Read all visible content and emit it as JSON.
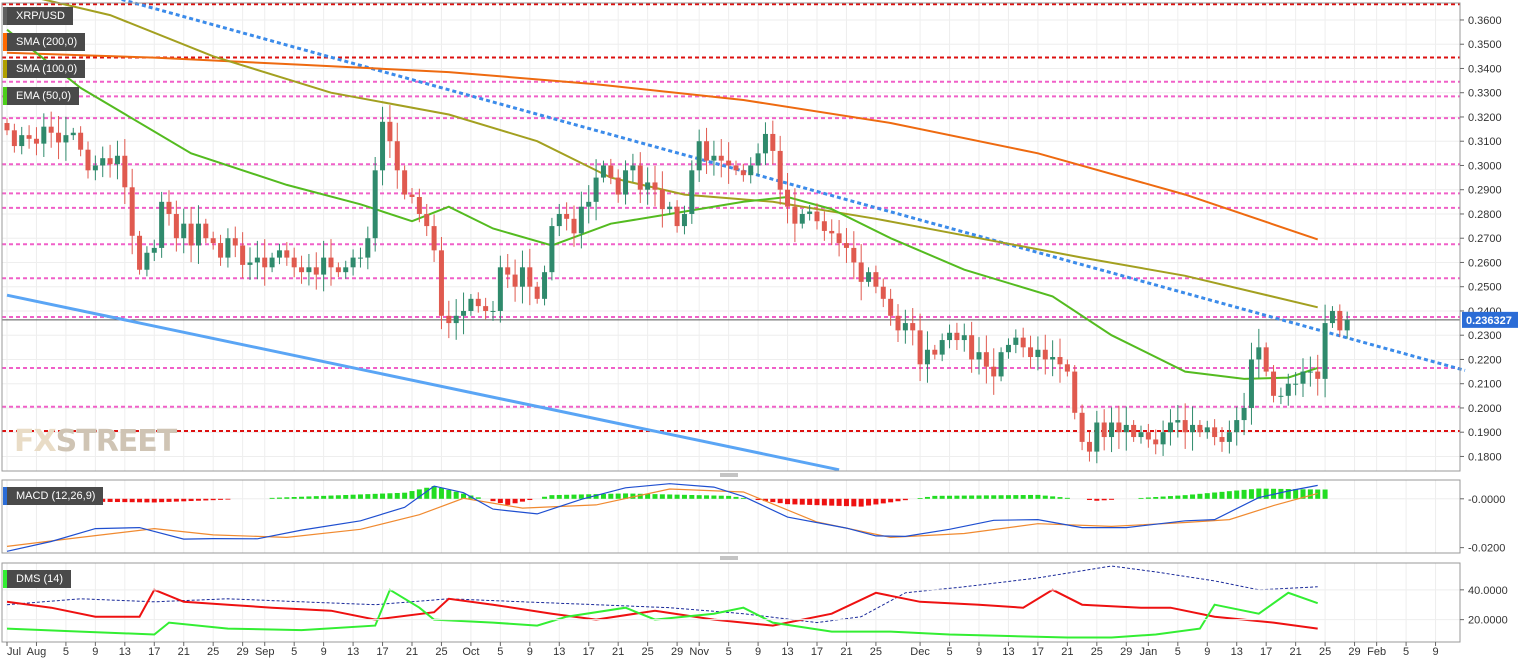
{
  "colors": {
    "up": "#2f8a6c",
    "down": "#e05a4f",
    "sma200": "#ee6a10",
    "sma100": "#a3a020",
    "ema50": "#54bb20",
    "trend_blue": "#3b8bea",
    "channel_blue": "#5aa5f5",
    "res_red": "#dd1010",
    "res_pink": "#f060c8",
    "macd_line": "#1f4fd0",
    "signal_line": "#f08a30",
    "hist_pos": "#22dd22",
    "hist_neg": "#ee1111",
    "dmi_plus": "#33ee33",
    "dmi_minus": "#ee1111",
    "adx": "#1a2a9a"
  },
  "overlay_tags": {
    "symbol": "XRP/USD",
    "sma200": "SMA (200,0)",
    "sma100": "SMA (100,0)",
    "ema50": "EMA (50,0)",
    "macd": "MACD (12,26,9)",
    "dms": "DMS (14)"
  },
  "watermark": {
    "prefix": "FX",
    "rest": "STREET"
  },
  "chart_data": [
    {
      "type": "candlestick",
      "title": "XRP/USD",
      "ylim": [
        0.174,
        0.367
      ],
      "last_price_label": "0.236327",
      "last_price": 0.236327,
      "y_ticks": [
        "0.3600",
        "0.3500",
        "0.3400",
        "0.3300",
        "0.3200",
        "0.3100",
        "0.3000",
        "0.2900",
        "0.2800",
        "0.2700",
        "0.2600",
        "0.2500",
        "0.2400",
        "0.2300",
        "0.2200",
        "0.2100",
        "0.2000",
        "0.1900",
        "0.1800"
      ],
      "x_ticks": [
        "Jul",
        "Aug",
        "5",
        "9",
        "13",
        "17",
        "21",
        "25",
        "29",
        "Sep",
        "5",
        "9",
        "13",
        "17",
        "21",
        "25",
        "Oct",
        "5",
        "9",
        "13",
        "17",
        "21",
        "25",
        "29",
        "Nov",
        "5",
        "9",
        "13",
        "17",
        "21",
        "25",
        "Dec",
        "5",
        "9",
        "13",
        "17",
        "21",
        "25",
        "29",
        "Jan",
        "5",
        "9",
        "13",
        "17",
        "21",
        "25",
        "29",
        "Feb",
        "5",
        "9"
      ],
      "x_tick_days": [
        0,
        4,
        8,
        12,
        16,
        20,
        24,
        28,
        32,
        35,
        39,
        43,
        47,
        51,
        55,
        59,
        63,
        67,
        71,
        75,
        79,
        83,
        87,
        91,
        94,
        98,
        102,
        106,
        110,
        114,
        118,
        124,
        128,
        132,
        136,
        140,
        144,
        148,
        152,
        155,
        159,
        163,
        167,
        171,
        175,
        179,
        183,
        186,
        190,
        194
      ],
      "candle_closes": [
        0.3145,
        0.308,
        0.3125,
        0.311,
        0.309,
        0.316,
        0.3135,
        0.3095,
        0.3125,
        0.3135,
        0.3065,
        0.298,
        0.3,
        0.303,
        0.3005,
        0.304,
        0.291,
        0.271,
        0.257,
        0.264,
        0.266,
        0.285,
        0.28,
        0.27,
        0.276,
        0.267,
        0.276,
        0.27,
        0.268,
        0.262,
        0.27,
        0.267,
        0.259,
        0.26,
        0.262,
        0.258,
        0.262,
        0.265,
        0.262,
        0.258,
        0.256,
        0.258,
        0.255,
        0.262,
        0.258,
        0.256,
        0.258,
        0.262,
        0.262,
        0.27,
        0.298,
        0.318,
        0.31,
        0.298,
        0.288,
        0.287,
        0.28,
        0.275,
        0.265,
        0.238,
        0.235,
        0.238,
        0.24,
        0.245,
        0.242,
        0.24,
        0.24,
        0.258,
        0.255,
        0.25,
        0.258,
        0.25,
        0.245,
        0.256,
        0.275,
        0.28,
        0.278,
        0.272,
        0.283,
        0.285,
        0.295,
        0.3,
        0.295,
        0.288,
        0.298,
        0.3,
        0.29,
        0.293,
        0.29,
        0.282,
        0.283,
        0.275,
        0.28,
        0.298,
        0.31,
        0.302,
        0.304,
        0.302,
        0.3,
        0.298,
        0.296,
        0.3,
        0.305,
        0.313,
        0.306,
        0.29,
        0.283,
        0.276,
        0.28,
        0.281,
        0.277,
        0.273,
        0.272,
        0.268,
        0.266,
        0.26,
        0.252,
        0.256,
        0.25,
        0.245,
        0.238,
        0.232,
        0.235,
        0.232,
        0.218,
        0.224,
        0.222,
        0.228,
        0.231,
        0.228,
        0.23,
        0.22,
        0.223,
        0.217,
        0.213,
        0.223,
        0.226,
        0.229,
        0.225,
        0.221,
        0.224,
        0.22,
        0.221,
        0.218,
        0.215,
        0.198,
        0.186,
        0.182,
        0.194,
        0.188,
        0.194,
        0.19,
        0.193,
        0.188,
        0.19,
        0.187,
        0.185,
        0.19,
        0.194,
        0.195,
        0.19,
        0.193,
        0.19,
        0.192,
        0.188,
        0.186,
        0.19,
        0.195,
        0.2,
        0.22,
        0.225,
        0.215,
        0.205,
        0.205,
        0.21,
        0.21,
        0.215,
        0.215,
        0.212,
        0.235,
        0.24,
        0.232,
        0.236327
      ],
      "sma200": {
        "name": "SMA (200,0)",
        "points": [
          [
            0,
            0.3465
          ],
          [
            20,
            0.3445
          ],
          [
            40,
            0.3415
          ],
          [
            60,
            0.3385
          ],
          [
            80,
            0.3335
          ],
          [
            100,
            0.327
          ],
          [
            120,
            0.3175
          ],
          [
            140,
            0.305
          ],
          [
            160,
            0.288
          ],
          [
            178,
            0.2695
          ]
        ]
      },
      "sma100": {
        "name": "SMA (100,0)",
        "points": [
          [
            0,
            0.372
          ],
          [
            14,
            0.362
          ],
          [
            28,
            0.345
          ],
          [
            44,
            0.33
          ],
          [
            60,
            0.321
          ],
          [
            72,
            0.31
          ],
          [
            82,
            0.295
          ],
          [
            92,
            0.288
          ],
          [
            104,
            0.285
          ],
          [
            118,
            0.278
          ],
          [
            132,
            0.27
          ],
          [
            146,
            0.262
          ],
          [
            160,
            0.2545
          ],
          [
            178,
            0.2415
          ]
        ]
      },
      "ema50": {
        "name": "EMA (50,0)",
        "points": [
          [
            0,
            0.356
          ],
          [
            10,
            0.332
          ],
          [
            25,
            0.305
          ],
          [
            38,
            0.292
          ],
          [
            48,
            0.284
          ],
          [
            55,
            0.277
          ],
          [
            60,
            0.283
          ],
          [
            66,
            0.274
          ],
          [
            74,
            0.267
          ],
          [
            82,
            0.276
          ],
          [
            90,
            0.28
          ],
          [
            100,
            0.285
          ],
          [
            106,
            0.287
          ],
          [
            112,
            0.282
          ],
          [
            120,
            0.27
          ],
          [
            130,
            0.257
          ],
          [
            142,
            0.246
          ],
          [
            150,
            0.23
          ],
          [
            160,
            0.215
          ],
          [
            168,
            0.212
          ],
          [
            174,
            0.2125
          ],
          [
            178,
            0.2165
          ]
        ]
      },
      "descending_trendline": {
        "points": [
          [
            0,
            0.3815
          ],
          [
            198,
            0.2155
          ]
        ]
      },
      "channel_line": {
        "points": [
          [
            0,
            0.2465
          ],
          [
            113,
            0.1745
          ]
        ]
      },
      "resistance_red": [
        0.3665,
        0.3445,
        0.1905
      ],
      "resistance_pink": [
        0.3345,
        0.3285,
        0.3195,
        0.3005,
        0.2885,
        0.2825,
        0.2675,
        0.2535,
        0.2375,
        0.2165,
        0.2005
      ]
    },
    {
      "type": "line",
      "title": "MACD (12,26,9)",
      "ylim": [
        -0.0222,
        0.0077
      ],
      "y_ticks": [
        "-0.0000",
        "-0.0200"
      ],
      "series": [
        {
          "name": "MACD",
          "points": [
            [
              0,
              -0.0215
            ],
            [
              6,
              -0.0175
            ],
            [
              12,
              -0.0122
            ],
            [
              18,
              -0.0118
            ],
            [
              24,
              -0.0165
            ],
            [
              28,
              -0.0163
            ],
            [
              34,
              -0.0164
            ],
            [
              40,
              -0.0128
            ],
            [
              48,
              -0.009
            ],
            [
              54,
              -0.0035
            ],
            [
              58,
              0.0052
            ],
            [
              62,
              0.0025
            ],
            [
              66,
              -0.0042
            ],
            [
              72,
              -0.0062
            ],
            [
              78,
              -0.0002
            ],
            [
              84,
              0.0045
            ],
            [
              90,
              0.0062
            ],
            [
              96,
              0.0048
            ],
            [
              100,
              0.001
            ],
            [
              106,
              -0.0075
            ],
            [
              114,
              -0.012
            ],
            [
              118,
              -0.0152
            ],
            [
              122,
              -0.0154
            ],
            [
              128,
              -0.0125
            ],
            [
              134,
              -0.0088
            ],
            [
              140,
              -0.0085
            ],
            [
              146,
              -0.0118
            ],
            [
              152,
              -0.0118
            ],
            [
              160,
              -0.009
            ],
            [
              164,
              -0.0085
            ],
            [
              170,
              0.0005
            ],
            [
              174,
              0.0032
            ],
            [
              178,
              0.0055
            ]
          ]
        },
        {
          "name": "Signal",
          "points": [
            [
              0,
              -0.0195
            ],
            [
              10,
              -0.0158
            ],
            [
              20,
              -0.0122
            ],
            [
              28,
              -0.0148
            ],
            [
              38,
              -0.0158
            ],
            [
              48,
              -0.0125
            ],
            [
              56,
              -0.0065
            ],
            [
              62,
              0.0002
            ],
            [
              70,
              -0.0038
            ],
            [
              80,
              -0.0025
            ],
            [
              90,
              0.004
            ],
            [
              100,
              0.0028
            ],
            [
              110,
              -0.0095
            ],
            [
              120,
              -0.0158
            ],
            [
              130,
              -0.0142
            ],
            [
              140,
              -0.0102
            ],
            [
              150,
              -0.0113
            ],
            [
              160,
              -0.0097
            ],
            [
              166,
              -0.0085
            ],
            [
              172,
              -0.0028
            ],
            [
              178,
              0.0022
            ]
          ]
        },
        {
          "name": "Histogram",
          "points": [
            [
              0,
              -0.0008
            ],
            [
              20,
              -0.0015
            ],
            [
              54,
              0.0025
            ],
            [
              58,
              0.0052
            ],
            [
              68,
              -0.0025
            ],
            [
              74,
              0.0015
            ],
            [
              84,
              0.0022
            ],
            [
              98,
              0.0012
            ],
            [
              106,
              -0.0022
            ],
            [
              116,
              -0.0032
            ],
            [
              126,
              0.0012
            ],
            [
              140,
              0.0016
            ],
            [
              148,
              -0.0008
            ],
            [
              160,
              0.0015
            ],
            [
              170,
              0.0042
            ],
            [
              178,
              0.0038
            ]
          ]
        }
      ]
    },
    {
      "type": "line",
      "title": "DMS (14)",
      "ylim": [
        5,
        58
      ],
      "y_ticks": [
        "40.0000",
        "20.0000"
      ],
      "series": [
        {
          "name": "+DI",
          "points": [
            [
              0,
              14
            ],
            [
              10,
              12
            ],
            [
              20,
              10
            ],
            [
              22,
              18
            ],
            [
              30,
              14
            ],
            [
              40,
              13
            ],
            [
              50,
              16
            ],
            [
              52,
              40
            ],
            [
              56,
              28
            ],
            [
              58,
              20
            ],
            [
              66,
              18
            ],
            [
              72,
              16
            ],
            [
              76,
              22
            ],
            [
              84,
              28
            ],
            [
              88,
              20
            ],
            [
              96,
              24
            ],
            [
              100,
              28
            ],
            [
              104,
              18
            ],
            [
              112,
              12
            ],
            [
              120,
              12
            ],
            [
              128,
              10
            ],
            [
              136,
              9
            ],
            [
              144,
              8
            ],
            [
              150,
              8
            ],
            [
              156,
              10
            ],
            [
              162,
              14
            ],
            [
              164,
              30
            ],
            [
              170,
              24
            ],
            [
              174,
              38
            ],
            [
              178,
              31
            ]
          ]
        },
        {
          "name": "-DI",
          "points": [
            [
              0,
              32
            ],
            [
              6,
              28
            ],
            [
              12,
              22
            ],
            [
              18,
              22
            ],
            [
              20,
              40
            ],
            [
              24,
              32
            ],
            [
              30,
              30
            ],
            [
              36,
              28
            ],
            [
              44,
              26
            ],
            [
              50,
              20
            ],
            [
              58,
              25
            ],
            [
              60,
              34
            ],
            [
              66,
              30
            ],
            [
              74,
              24
            ],
            [
              80,
              20
            ],
            [
              88,
              26
            ],
            [
              96,
              20
            ],
            [
              104,
              16
            ],
            [
              112,
              24
            ],
            [
              118,
              38
            ],
            [
              124,
              32
            ],
            [
              132,
              30
            ],
            [
              138,
              28
            ],
            [
              142,
              40
            ],
            [
              146,
              30
            ],
            [
              154,
              28
            ],
            [
              158,
              28
            ],
            [
              164,
              22
            ],
            [
              172,
              18
            ],
            [
              178,
              14
            ]
          ]
        },
        {
          "name": "ADX",
          "points": [
            [
              0,
              30
            ],
            [
              10,
              34
            ],
            [
              20,
              32
            ],
            [
              30,
              34
            ],
            [
              40,
              32
            ],
            [
              50,
              30
            ],
            [
              60,
              34
            ],
            [
              70,
              32
            ],
            [
              80,
              30
            ],
            [
              90,
              28
            ],
            [
              100,
              24
            ],
            [
              110,
              18
            ],
            [
              116,
              22
            ],
            [
              122,
              38
            ],
            [
              130,
              42
            ],
            [
              140,
              48
            ],
            [
              150,
              56
            ],
            [
              156,
              52
            ],
            [
              164,
              46
            ],
            [
              170,
              40
            ],
            [
              178,
              42
            ]
          ]
        }
      ]
    }
  ]
}
